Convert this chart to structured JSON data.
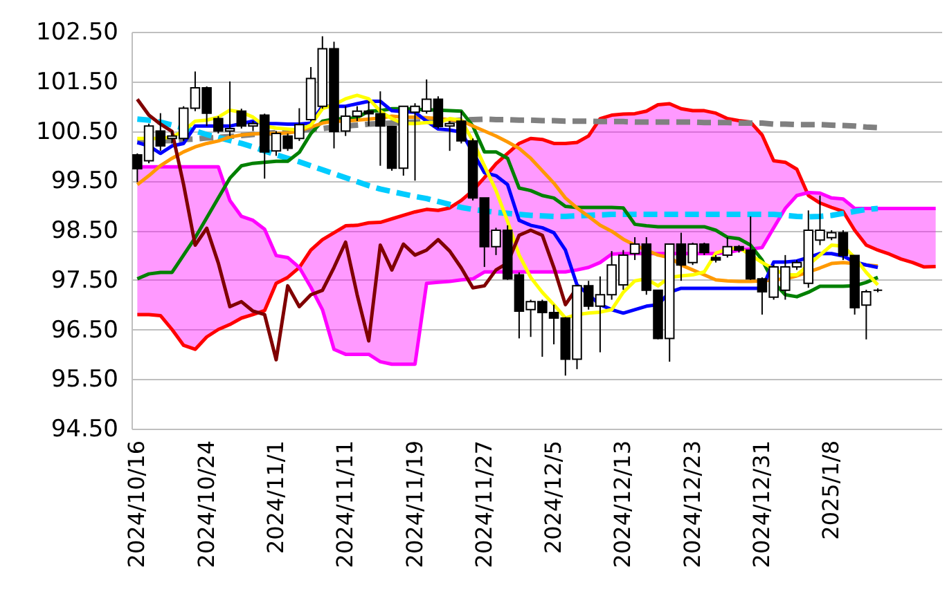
{
  "chart_data": {
    "type": "candlestick",
    "categories": [
      "2024/10/16",
      null,
      null,
      null,
      null,
      null,
      "2024/10/24",
      null,
      null,
      null,
      null,
      null,
      "2024/11/1",
      null,
      null,
      null,
      null,
      null,
      "2024/11/11",
      null,
      null,
      null,
      null,
      null,
      "2024/11/19",
      null,
      null,
      null,
      null,
      null,
      "2024/11/27",
      null,
      null,
      null,
      null,
      null,
      "2024/12/5",
      null,
      null,
      null,
      null,
      null,
      "2024/12/13",
      null,
      null,
      null,
      null,
      null,
      "2024/12/23",
      null,
      null,
      null,
      null,
      null,
      "2024/12/31",
      null,
      null,
      null,
      null,
      null,
      "2025/1/8",
      null,
      null,
      null,
      null,
      null,
      null,
      null,
      null,
      null
    ],
    "ohlc": [
      [
        100.02,
        100.05,
        99.47,
        99.74
      ],
      [
        99.9,
        100.65,
        99.85,
        100.6
      ],
      [
        100.5,
        100.86,
        100.1,
        100.2
      ],
      [
        100.35,
        100.5,
        100.25,
        100.4
      ],
      [
        100.35,
        101.0,
        100.3,
        100.96
      ],
      [
        100.96,
        101.7,
        100.9,
        101.37
      ],
      [
        101.37,
        101.4,
        100.6,
        100.86
      ],
      [
        100.75,
        100.8,
        100.45,
        100.5
      ],
      [
        100.5,
        101.5,
        100.4,
        100.55
      ],
      [
        100.9,
        100.95,
        100.55,
        100.6
      ],
      [
        100.6,
        100.7,
        100.5,
        100.65
      ],
      [
        100.82,
        100.85,
        99.54,
        100.08
      ],
      [
        100.1,
        100.5,
        100.0,
        100.45
      ],
      [
        100.4,
        100.45,
        100.1,
        100.15
      ],
      [
        100.35,
        100.96,
        100.3,
        100.63
      ],
      [
        100.73,
        101.79,
        100.7,
        101.56
      ],
      [
        101.0,
        102.41,
        100.95,
        102.16
      ],
      [
        102.16,
        102.3,
        100.15,
        100.49
      ],
      [
        100.5,
        101.0,
        100.4,
        100.8
      ],
      [
        100.8,
        101.0,
        100.7,
        100.9
      ],
      [
        100.9,
        101.1,
        100.6,
        100.85
      ],
      [
        100.85,
        101.3,
        99.8,
        100.6
      ],
      [
        100.59,
        100.6,
        99.7,
        99.75
      ],
      [
        99.75,
        101.0,
        99.6,
        101.0
      ],
      [
        100.88,
        101.06,
        99.5,
        101.0
      ],
      [
        100.9,
        101.54,
        100.85,
        101.14
      ],
      [
        101.14,
        101.2,
        100.55,
        100.59
      ],
      [
        100.6,
        100.7,
        100.1,
        100.65
      ],
      [
        100.7,
        100.9,
        100.25,
        100.3
      ],
      [
        100.3,
        100.35,
        99.1,
        99.15
      ],
      [
        99.15,
        99.15,
        97.76,
        98.17
      ],
      [
        98.17,
        98.55,
        98.0,
        98.5
      ],
      [
        98.5,
        98.6,
        97.5,
        97.52
      ],
      [
        97.6,
        97.65,
        96.32,
        96.87
      ],
      [
        96.9,
        97.1,
        96.35,
        97.06
      ],
      [
        97.06,
        97.1,
        95.95,
        96.84
      ],
      [
        96.84,
        97.0,
        96.2,
        96.73
      ],
      [
        96.73,
        96.75,
        95.57,
        95.9
      ],
      [
        95.9,
        97.4,
        95.7,
        97.38
      ],
      [
        97.38,
        97.48,
        96.9,
        96.97
      ],
      [
        96.97,
        97.57,
        96.04,
        97.2
      ],
      [
        97.2,
        98.08,
        97.1,
        97.8
      ],
      [
        97.4,
        98.1,
        97.3,
        98.0
      ],
      [
        98.03,
        98.36,
        97.9,
        98.22
      ],
      [
        98.22,
        98.36,
        97.2,
        97.29
      ],
      [
        97.29,
        97.3,
        96.3,
        96.32
      ],
      [
        96.32,
        98.22,
        95.85,
        98.22
      ],
      [
        98.22,
        98.45,
        97.48,
        97.8
      ],
      [
        97.85,
        98.25,
        97.8,
        98.22
      ],
      [
        98.22,
        98.25,
        98.0,
        98.05
      ],
      [
        97.95,
        98.0,
        97.85,
        97.9
      ],
      [
        98.0,
        98.36,
        97.95,
        98.17
      ],
      [
        98.17,
        98.2,
        98.05,
        98.1
      ],
      [
        98.1,
        98.78,
        97.5,
        97.52
      ],
      [
        97.52,
        97.55,
        96.8,
        97.26
      ],
      [
        97.15,
        97.8,
        97.1,
        97.76
      ],
      [
        97.29,
        98.0,
        97.1,
        97.76
      ],
      [
        97.76,
        97.9,
        97.7,
        97.85
      ],
      [
        97.43,
        98.9,
        97.34,
        98.5
      ],
      [
        98.3,
        99.2,
        98.2,
        98.5
      ],
      [
        98.35,
        98.5,
        98.3,
        98.45
      ],
      [
        98.45,
        98.5,
        97.9,
        97.99
      ],
      [
        97.99,
        98.0,
        96.8,
        96.94
      ],
      [
        96.99,
        97.3,
        96.3,
        97.26
      ],
      [
        97.29,
        97.33,
        97.25,
        97.29
      ],
      null,
      null,
      null,
      null,
      null
    ],
    "ylim": [
      94.5,
      102.5
    ],
    "yticks": [
      {
        "value": 94.5,
        "label": "94.50"
      },
      {
        "value": 95.5,
        "label": "95.50"
      },
      {
        "value": 96.5,
        "label": "96.50"
      },
      {
        "value": 97.5,
        "label": "97.50"
      },
      {
        "value": 98.5,
        "label": "98.50"
      },
      {
        "value": 99.5,
        "label": "99.50"
      },
      {
        "value": 100.5,
        "label": "100.50"
      },
      {
        "value": 101.5,
        "label": "101.50"
      },
      {
        "value": 102.5,
        "label": "102.50"
      }
    ],
    "grid": "y",
    "series": [
      {
        "type": "line",
        "color": "#ff0000",
        "values": [
          96.8,
          96.8,
          96.78,
          96.5,
          96.18,
          96.1,
          96.35,
          96.5,
          96.6,
          96.73,
          96.8,
          96.88,
          97.43,
          97.55,
          97.75,
          98.1,
          98.31,
          98.45,
          98.59,
          98.6,
          98.65,
          98.66,
          98.73,
          98.8,
          98.87,
          98.92,
          98.9,
          98.95,
          99.1,
          99.3,
          99.56,
          99.84,
          100.05,
          100.25,
          100.35,
          100.33,
          100.25,
          100.25,
          100.27,
          100.4,
          100.75,
          100.82,
          100.84,
          100.85,
          100.9,
          101.03,
          101.05,
          100.95,
          100.91,
          100.91,
          100.86,
          100.75,
          100.71,
          100.68,
          100.42,
          99.9,
          99.87,
          99.73,
          99.2,
          99.05,
          98.96,
          98.88,
          98.5,
          98.2,
          98.1,
          98.02,
          97.92,
          97.85,
          97.76,
          97.77
        ]
      },
      {
        "type": "line",
        "color": "#ff00ff",
        "lower": [
          96.8,
          96.8,
          96.78,
          96.5,
          96.18,
          96.1,
          96.35,
          96.5,
          96.6,
          96.73,
          96.8,
          96.88,
          97.43,
          97.55,
          97.75,
          98.1,
          98.31,
          98.45,
          98.59,
          98.6,
          98.65,
          98.66,
          98.73,
          98.8,
          98.87,
          98.92,
          98.9,
          98.95,
          99.1,
          99.3,
          99.56,
          99.84,
          100.05,
          100.25,
          100.35,
          100.33,
          100.25,
          100.25,
          100.27,
          100.4,
          100.75,
          100.82,
          100.84,
          100.85,
          100.9,
          101.03,
          101.05,
          100.95,
          100.91,
          100.91,
          100.86,
          100.75,
          100.71,
          100.68,
          100.42,
          99.9,
          99.87,
          99.73,
          99.2,
          99.05,
          98.96,
          98.88,
          98.5,
          98.2,
          98.1,
          98.02,
          97.92,
          97.85,
          97.76,
          97.77
        ],
        "upper": [
          99.78,
          99.78,
          99.78,
          99.78,
          99.78,
          99.78,
          99.78,
          99.78,
          99.1,
          98.78,
          98.7,
          98.52,
          97.99,
          97.95,
          97.75,
          97.35,
          96.9,
          96.1,
          96.0,
          96.0,
          96.0,
          95.85,
          95.8,
          95.8,
          95.8,
          97.43,
          97.45,
          97.47,
          97.5,
          97.52,
          97.66,
          97.66,
          97.66,
          97.66,
          97.66,
          97.66,
          97.66,
          97.66,
          97.7,
          97.75,
          97.85,
          98.02,
          98.03,
          98.03,
          98.03,
          98.03,
          98.03,
          98.03,
          98.03,
          98.03,
          98.03,
          98.05,
          98.1,
          98.12,
          98.15,
          98.55,
          98.94,
          99.2,
          99.26,
          99.25,
          99.15,
          99.13,
          98.94,
          98.94,
          98.94,
          98.94,
          98.94,
          98.94,
          98.94,
          98.94
        ],
        "values": [
          99.78,
          99.78,
          99.78,
          99.78,
          99.78,
          99.78,
          99.78,
          99.78,
          99.1,
          98.78,
          98.7,
          98.52,
          97.99,
          97.95,
          97.75,
          97.35,
          96.9,
          96.1,
          96.0,
          96.0,
          96.0,
          95.85,
          95.8,
          95.8,
          95.8,
          97.43,
          97.45,
          97.47,
          97.5,
          97.52,
          97.66,
          97.66,
          97.66,
          97.66,
          97.66,
          97.66,
          97.66,
          97.66,
          97.7,
          97.75,
          97.85,
          98.02,
          98.03,
          98.03,
          98.03,
          98.03,
          98.03,
          98.03,
          98.03,
          98.03,
          98.03,
          98.05,
          98.1,
          98.12,
          98.15,
          98.55,
          98.94,
          99.2,
          99.26,
          99.25,
          99.15,
          99.13,
          98.94,
          98.94,
          98.94,
          98.94,
          98.94,
          98.94,
          98.94,
          98.94
        ]
      },
      {
        "type": "line",
        "color": "#808080",
        "line_style": "dashed",
        "values": [
          100.28,
          100.29,
          100.3,
          100.31,
          100.33,
          100.34,
          100.36,
          100.37,
          100.39,
          100.41,
          100.43,
          100.45,
          100.47,
          100.5,
          100.51,
          100.53,
          100.55,
          100.58,
          100.6,
          100.62,
          100.64,
          100.65,
          100.66,
          100.67,
          100.68,
          100.69,
          100.7,
          100.71,
          100.72,
          100.73,
          100.74,
          100.73,
          100.73,
          100.72,
          100.72,
          100.71,
          100.71,
          100.7,
          100.7,
          100.7,
          100.69,
          100.69,
          100.69,
          100.68,
          100.68,
          100.68,
          100.68,
          100.68,
          100.68,
          100.67,
          100.67,
          100.67,
          100.66,
          100.66,
          100.66,
          100.64,
          100.64,
          100.63,
          100.63,
          100.63,
          100.62,
          100.61,
          100.6,
          100.58,
          100.57,
          null,
          null,
          null,
          null,
          null
        ]
      },
      {
        "type": "line",
        "color": "#00ccff",
        "line_style": "dashed",
        "values": [
          100.74,
          100.72,
          100.68,
          100.62,
          100.56,
          100.5,
          100.43,
          100.37,
          100.31,
          100.25,
          100.18,
          100.1,
          100.02,
          99.95,
          99.88,
          99.8,
          99.72,
          99.64,
          99.56,
          99.48,
          99.4,
          99.33,
          99.28,
          99.23,
          99.18,
          99.14,
          99.08,
          99.02,
          98.96,
          98.92,
          98.89,
          98.86,
          98.84,
          98.82,
          98.8,
          98.79,
          98.78,
          98.78,
          98.79,
          98.8,
          98.81,
          98.82,
          98.82,
          98.82,
          98.82,
          98.82,
          98.82,
          98.82,
          98.82,
          98.82,
          98.82,
          98.82,
          98.82,
          98.82,
          98.82,
          98.82,
          98.8,
          98.78,
          98.77,
          98.78,
          98.8,
          98.84,
          98.88,
          98.92,
          98.94,
          null,
          null,
          null,
          null,
          null
        ]
      },
      {
        "type": "line",
        "color": "#008000",
        "values": [
          97.52,
          97.62,
          97.65,
          97.65,
          98.0,
          98.35,
          98.75,
          99.15,
          99.55,
          99.8,
          99.85,
          99.87,
          99.89,
          99.89,
          100.07,
          100.45,
          100.7,
          100.74,
          100.75,
          100.77,
          100.9,
          100.91,
          100.95,
          100.95,
          100.94,
          100.93,
          100.92,
          100.91,
          100.9,
          100.6,
          100.08,
          100.08,
          99.95,
          99.35,
          99.3,
          99.2,
          99.15,
          98.98,
          98.96,
          98.96,
          98.96,
          98.96,
          98.95,
          98.62,
          98.59,
          98.57,
          98.57,
          98.57,
          98.57,
          98.57,
          98.5,
          98.36,
          98.33,
          98.2,
          97.9,
          97.45,
          97.2,
          97.16,
          97.25,
          97.37,
          97.37,
          97.37,
          97.38,
          97.45,
          97.55,
          null,
          null,
          null,
          null,
          null
        ]
      },
      {
        "type": "line",
        "color": "#ff9900",
        "values": [
          99.42,
          99.6,
          99.8,
          99.95,
          100.08,
          100.18,
          100.25,
          100.3,
          100.38,
          100.42,
          100.44,
          100.45,
          100.45,
          100.46,
          100.5,
          100.58,
          100.66,
          100.7,
          100.7,
          100.72,
          100.74,
          100.76,
          100.8,
          100.78,
          100.78,
          100.77,
          100.75,
          100.73,
          100.71,
          100.6,
          100.5,
          100.4,
          100.28,
          100.15,
          99.95,
          99.7,
          99.45,
          99.15,
          98.95,
          98.78,
          98.6,
          98.48,
          98.32,
          98.2,
          98.1,
          98.0,
          97.95,
          97.8,
          97.7,
          97.6,
          97.5,
          97.48,
          97.47,
          97.47,
          97.48,
          97.5,
          97.52,
          97.58,
          97.66,
          97.74,
          97.83,
          97.85,
          97.83,
          97.8,
          97.78,
          null,
          null,
          null,
          null,
          null
        ]
      },
      {
        "type": "line",
        "color": "#0000ff",
        "values": [
          100.27,
          100.2,
          100.05,
          100.2,
          100.25,
          100.6,
          100.6,
          100.6,
          100.6,
          100.65,
          100.7,
          100.65,
          100.65,
          100.64,
          100.64,
          100.66,
          101.0,
          101.0,
          101.0,
          101.05,
          101.1,
          101.1,
          100.91,
          100.89,
          100.88,
          100.7,
          100.54,
          100.52,
          100.48,
          null,
          99.66,
          99.6,
          99.42,
          98.7,
          98.6,
          98.55,
          98.45,
          98.1,
          97.4,
          97.2,
          97.0,
          96.9,
          96.83,
          96.9,
          96.97,
          97.0,
          97.25,
          97.33,
          97.33,
          97.33,
          97.33,
          97.33,
          97.33,
          97.33,
          97.33,
          97.86,
          97.86,
          97.88,
          97.95,
          98.03,
          98.03,
          97.98,
          97.86,
          97.8,
          97.75,
          null,
          null,
          null,
          null,
          null
        ]
      },
      {
        "type": "line",
        "color": "#ffff00",
        "values": [
          100.35,
          100.35,
          100.35,
          100.38,
          100.5,
          100.7,
          100.72,
          100.78,
          100.92,
          100.88,
          100.78,
          100.6,
          100.56,
          100.54,
          100.52,
          100.62,
          100.95,
          101.03,
          101.15,
          101.22,
          101.15,
          100.9,
          100.75,
          100.65,
          100.65,
          100.67,
          100.67,
          100.75,
          100.72,
          100.3,
          99.8,
          99.3,
          98.68,
          98.0,
          97.55,
          97.25,
          97.0,
          96.73,
          96.8,
          96.83,
          96.85,
          96.9,
          97.25,
          97.48,
          97.52,
          97.38,
          97.55,
          97.58,
          97.6,
          97.66,
          98.04,
          98.12,
          98.15,
          98.0,
          97.85,
          97.72,
          97.6,
          97.6,
          97.8,
          98.0,
          98.2,
          98.18,
          97.95,
          97.65,
          97.4,
          null,
          null,
          null,
          null,
          null
        ]
      },
      {
        "type": "line",
        "color": "#800000",
        "values": [
          101.14,
          100.82,
          100.64,
          100.49,
          99.42,
          98.2,
          98.54,
          97.84,
          96.96,
          97.06,
          96.87,
          96.8,
          95.89,
          97.38,
          96.96,
          97.2,
          97.29,
          97.75,
          98.26,
          97.2,
          96.27,
          98.2,
          97.7,
          98.22,
          98.0,
          98.1,
          98.31,
          98.08,
          97.74,
          97.34,
          97.38,
          97.7,
          97.84,
          98.4,
          98.5,
          98.4,
          97.75,
          97.0,
          97.34,
          null,
          null,
          null,
          null,
          null,
          null,
          null,
          null,
          null,
          null,
          null,
          null,
          null,
          null,
          null,
          null,
          null,
          null,
          null,
          null,
          null,
          null,
          null,
          null,
          null,
          null,
          null,
          null,
          null,
          null,
          null
        ]
      }
    ]
  }
}
